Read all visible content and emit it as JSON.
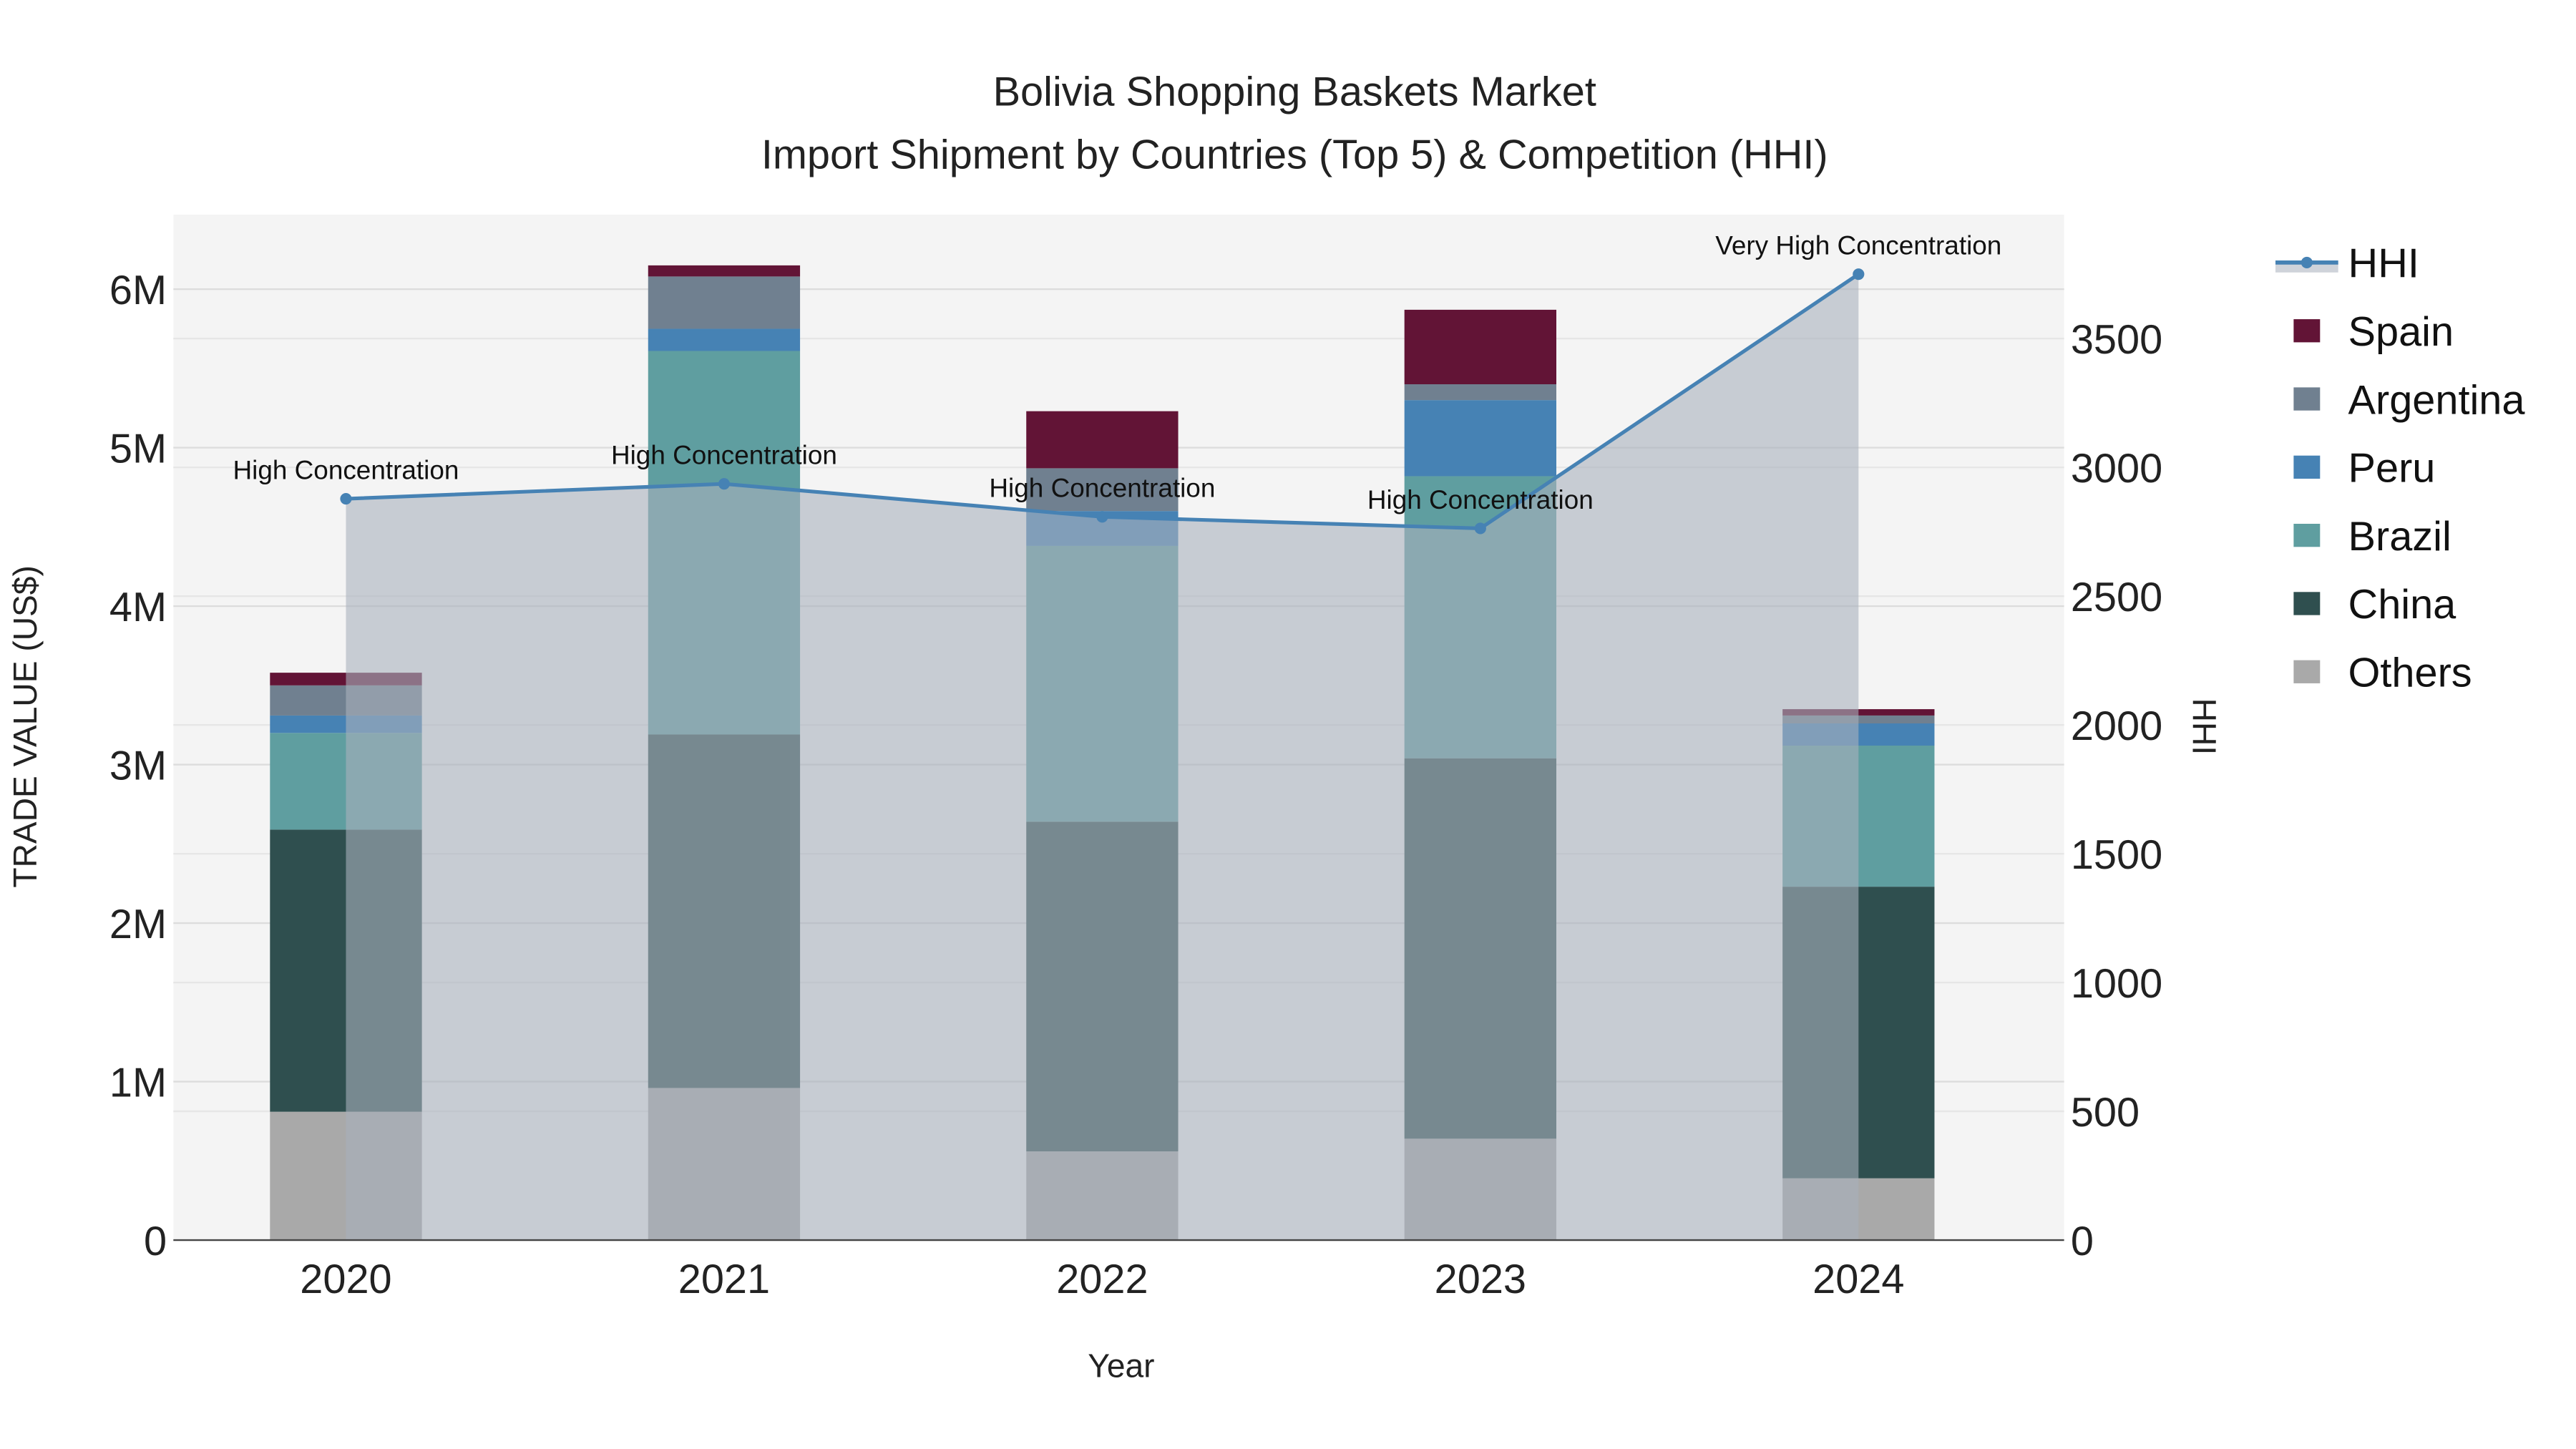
{
  "chart_data": {
    "type": "bar",
    "title": "Bolivia Shopping Baskets Market",
    "subtitle": "Import Shipment by Countries (Top 5) & Competition (HHI)",
    "xlabel": "Year",
    "ylabel": "TRADE VALUE (US$)",
    "y2label": "HHI",
    "categories": [
      "2020",
      "2021",
      "2022",
      "2023",
      "2024"
    ],
    "ylim": [
      0,
      6.47
    ],
    "y_unit": "M",
    "y_ticks": [
      0,
      1,
      2,
      3,
      4,
      5,
      6
    ],
    "y_tick_labels": [
      "0",
      "1M",
      "2M",
      "3M",
      "4M",
      "5M",
      "6M"
    ],
    "y2lim": [
      0,
      3981
    ],
    "y2_ticks": [
      0,
      500,
      1000,
      1500,
      2000,
      2500,
      3000,
      3500
    ],
    "y2_tick_labels": [
      "0",
      "500",
      "1000",
      "1500",
      "2000",
      "2500",
      "3000",
      "3500"
    ],
    "grid": true,
    "legend_position": "right",
    "series": [
      {
        "name": "Others",
        "color": "#a9a9a9",
        "values": [
          0.81,
          0.96,
          0.56,
          0.64,
          0.39
        ]
      },
      {
        "name": "China",
        "color": "#2f4f4f",
        "values": [
          1.78,
          2.23,
          2.08,
          2.4,
          1.84
        ]
      },
      {
        "name": "Brazil",
        "color": "#5f9ea0",
        "values": [
          0.61,
          2.42,
          1.74,
          1.78,
          0.89
        ]
      },
      {
        "name": "Peru",
        "color": "#4682b4",
        "values": [
          0.11,
          0.14,
          0.22,
          0.48,
          0.14
        ]
      },
      {
        "name": "Argentina",
        "color": "#708090",
        "values": [
          0.19,
          0.33,
          0.27,
          0.1,
          0.05
        ]
      },
      {
        "name": "Spain",
        "color": "#621436",
        "values": [
          0.08,
          0.07,
          0.36,
          0.47,
          0.04
        ]
      }
    ],
    "hhi": {
      "name": "HHI",
      "color": "#4682b4",
      "values": [
        2878,
        2936,
        2808,
        2763,
        3750
      ],
      "annotations": [
        "High Concentration",
        "High Concentration",
        "High Concentration",
        "High Concentration",
        "Very High Concentration"
      ]
    },
    "legend_order": [
      "HHI",
      "Spain",
      "Argentina",
      "Peru",
      "Brazil",
      "China",
      "Others"
    ]
  }
}
